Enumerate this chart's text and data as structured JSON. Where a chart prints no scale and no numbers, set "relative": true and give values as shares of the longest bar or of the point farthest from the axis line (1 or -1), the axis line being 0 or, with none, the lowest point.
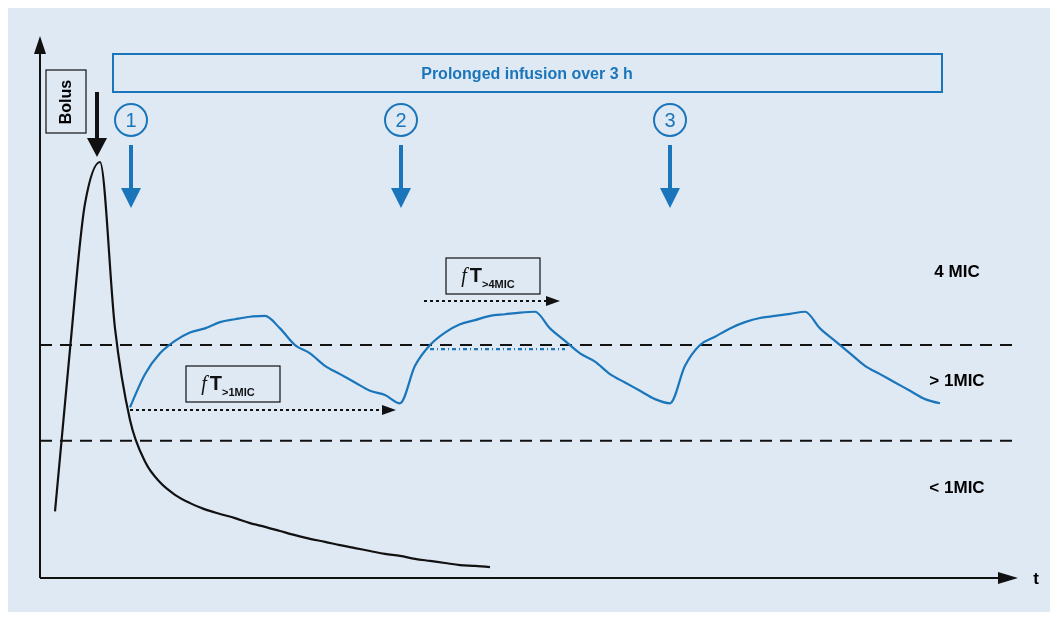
{
  "chart_data": {
    "type": "line",
    "relative": true,
    "xlabel": "t",
    "line_style": "solid",
    "marker": "none",
    "categories": [
      null,
      null,
      null,
      null,
      null,
      null,
      null,
      null,
      null,
      null,
      null,
      null,
      null,
      null,
      null,
      null,
      null,
      null,
      null,
      null,
      null,
      null,
      null,
      null,
      null,
      null,
      null,
      null,
      null,
      null,
      null,
      null,
      null,
      null,
      null,
      null,
      null,
      null,
      null,
      null,
      null,
      null,
      null,
      null,
      null,
      null,
      null,
      null,
      null,
      null,
      null,
      null,
      null,
      null,
      null,
      null,
      null,
      null,
      null,
      null,
      null,
      null,
      null,
      null,
      null
    ],
    "series": [
      {
        "color": "#111111",
        "values": [
          null,
          0.16,
          0.55,
          0.9,
          1.0,
          0.6,
          0.38,
          0.28,
          0.23,
          0.2,
          0.18,
          0.165,
          0.154,
          0.144,
          0.132,
          0.123,
          0.113,
          0.103,
          0.094,
          0.087,
          0.079,
          0.072,
          0.065,
          0.058,
          0.053,
          0.046,
          0.041,
          0.036,
          0.031,
          0.029,
          0.026,
          null,
          null,
          null,
          null,
          null,
          null,
          null,
          null,
          null,
          null,
          null,
          null,
          null,
          null,
          null,
          null,
          null,
          null,
          null,
          null,
          null,
          null,
          null,
          null,
          null,
          null,
          null,
          null,
          null,
          null,
          null,
          null,
          null,
          null
        ]
      },
      {
        "color": "#1a75bb",
        "values": [
          null,
          null,
          null,
          null,
          null,
          null,
          0.41,
          0.49,
          0.54,
          0.57,
          0.59,
          0.6,
          0.615,
          0.622,
          0.628,
          0.63,
          0.6,
          0.56,
          0.54,
          0.51,
          0.49,
          0.47,
          0.45,
          0.44,
          0.42,
          0.51,
          0.56,
          0.59,
          0.61,
          0.62,
          0.63,
          0.634,
          0.638,
          0.64,
          0.6,
          0.57,
          0.54,
          0.52,
          0.49,
          0.47,
          0.45,
          0.43,
          0.42,
          0.51,
          0.56,
          0.58,
          0.6,
          0.615,
          0.625,
          0.63,
          0.635,
          0.64,
          0.6,
          0.57,
          0.54,
          0.51,
          0.49,
          0.47,
          0.45,
          0.43,
          0.42,
          null,
          null,
          null,
          null
        ]
      },
      {
        "color": "#1a75bb",
        "line_style": "dotted",
        "values": [
          null,
          null,
          null,
          null,
          null,
          null,
          null,
          null,
          null,
          null,
          null,
          null,
          null,
          null,
          null,
          null,
          null,
          null,
          null,
          null,
          null,
          null,
          null,
          null,
          null,
          null,
          0.55,
          0.55,
          0.55,
          0.55,
          0.55,
          0.55,
          0.55,
          0.55,
          0.55,
          0.55,
          null,
          null,
          null,
          null,
          null,
          null,
          null,
          null,
          null,
          null,
          null,
          null,
          null,
          null,
          null,
          null,
          null,
          null,
          null,
          null,
          null,
          null,
          null,
          null,
          null,
          null,
          null,
          null,
          null
        ]
      }
    ],
    "ref_lines": [
      {
        "axis": "y",
        "value": 0.56,
        "line_style": "dashed",
        "color": "#111111"
      },
      {
        "axis": "y",
        "value": 0.33,
        "line_style": "dashed",
        "color": "#111111"
      }
    ],
    "annotations": [
      "Bolus",
      "Prolonged infusion over 3 h",
      "1",
      "2",
      "3",
      "fT$_{>1MIC}$",
      "fT$_{>4MIC}$",
      "4 MIC",
      "> 1MIC",
      "< 1MIC"
    ]
  }
}
